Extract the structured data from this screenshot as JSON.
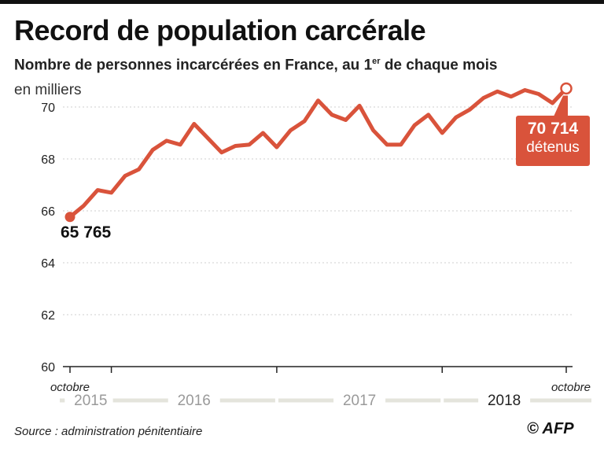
{
  "title": "Record de population carcérale",
  "subtitle": {
    "before": "Nombre de personnes incarcérées en France, au 1",
    "sup": "er",
    "after": " de chaque mois"
  },
  "unit_label": "en milliers",
  "source": "Source : administration pénitentiaire",
  "credit": "© AFP",
  "colors": {
    "line": "#d9533b",
    "axis": "#222222",
    "grid": "#cfcfcf",
    "year_band": "#e4e4dc"
  },
  "annotations": {
    "start_value": "65 765",
    "end_value": "70 714",
    "end_unit": "détenus"
  },
  "chart_data": {
    "type": "line",
    "title": "Record de population carcérale",
    "ylabel": "en milliers",
    "ylim": [
      60,
      71
    ],
    "yticks": [
      60,
      62,
      64,
      66,
      68,
      70
    ],
    "x_start_label": "octobre",
    "x_end_label": "octobre",
    "years": [
      "2015",
      "2016",
      "2017",
      "2018"
    ],
    "x": [
      "2015-10",
      "2015-11",
      "2015-12",
      "2016-01",
      "2016-02",
      "2016-03",
      "2016-04",
      "2016-05",
      "2016-06",
      "2016-07",
      "2016-08",
      "2016-09",
      "2016-10",
      "2016-11",
      "2016-12",
      "2017-01",
      "2017-02",
      "2017-03",
      "2017-04",
      "2017-05",
      "2017-06",
      "2017-07",
      "2017-08",
      "2017-09",
      "2017-10",
      "2017-11",
      "2017-12",
      "2018-01",
      "2018-02",
      "2018-03",
      "2018-04",
      "2018-05",
      "2018-06",
      "2018-07",
      "2018-08",
      "2018-09",
      "2018-10"
    ],
    "values": [
      65.765,
      66.2,
      66.8,
      66.7,
      67.35,
      67.6,
      68.35,
      68.7,
      68.55,
      69.35,
      68.8,
      68.25,
      68.5,
      68.55,
      69.0,
      68.45,
      69.1,
      69.45,
      70.25,
      69.7,
      69.5,
      70.05,
      69.1,
      68.55,
      68.55,
      69.3,
      69.7,
      69.0,
      69.6,
      69.9,
      70.35,
      70.6,
      70.4,
      70.65,
      70.5,
      70.15,
      70.714
    ]
  }
}
